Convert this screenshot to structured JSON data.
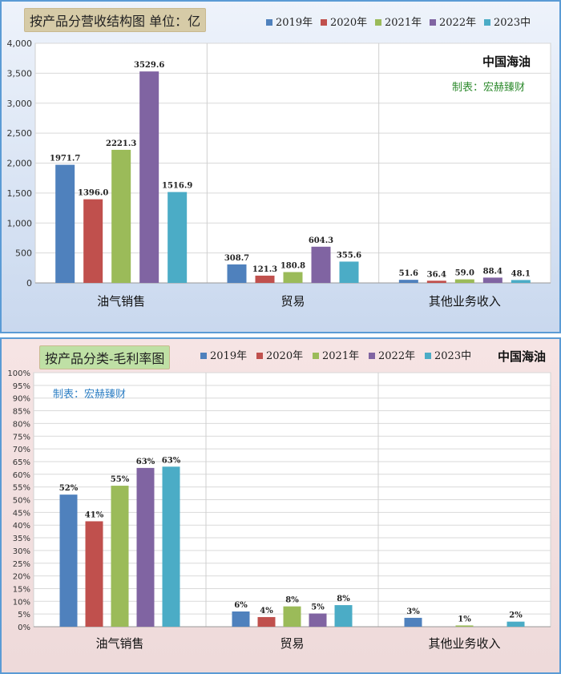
{
  "top": {
    "title": "按产品分营收结构图 单位：亿",
    "brand": "中国海油",
    "credit": "制表：宏赫臻财",
    "credit_color": "#2e8b2e"
  },
  "bottom": {
    "title": "按产品分类-毛利率图",
    "brand": "中国海油",
    "credit": "制表：宏赫臻财",
    "credit_color": "#2e7fc4"
  },
  "chart_data": [
    {
      "type": "bar",
      "title": "按产品分营收结构图 单位：亿",
      "categories": [
        "油气销售",
        "贸易",
        "其他业务收入"
      ],
      "ylim": [
        0,
        4000
      ],
      "yticks": [
        "0",
        "500",
        "1,000",
        "1,500",
        "2,000",
        "2,500",
        "3,000",
        "3,500",
        "4,000"
      ],
      "ytick_values": [
        0,
        500,
        1000,
        1500,
        2000,
        2500,
        3000,
        3500,
        4000
      ],
      "legend_position": "top",
      "grid": true,
      "series": [
        {
          "name": "2019年",
          "color": "#4f81bd",
          "values": [
            1971.7,
            308.7,
            51.6
          ],
          "labels": [
            "1971.7",
            "308.7",
            "51.6"
          ]
        },
        {
          "name": "2020年",
          "color": "#c0504d",
          "values": [
            1396.0,
            121.3,
            36.4
          ],
          "labels": [
            "1396.0",
            "121.3",
            "36.4"
          ]
        },
        {
          "name": "2021年",
          "color": "#9bbb59",
          "values": [
            2221.3,
            180.8,
            59.0
          ],
          "labels": [
            "2221.3",
            "180.8",
            "59.0"
          ]
        },
        {
          "name": "2022年",
          "color": "#8064a2",
          "values": [
            3529.6,
            604.3,
            88.4
          ],
          "labels": [
            "3529.6",
            "604.3",
            "88.4"
          ]
        },
        {
          "name": "2023中",
          "color": "#4bacc6",
          "values": [
            1516.9,
            355.6,
            48.1
          ],
          "labels": [
            "1516.9",
            "355.6",
            "48.1"
          ]
        }
      ]
    },
    {
      "type": "bar",
      "title": "按产品分类-毛利率图",
      "categories": [
        "油气销售",
        "贸易",
        "其他业务收入"
      ],
      "ylim": [
        0,
        100
      ],
      "yticks": [
        "0%",
        "5%",
        "10%",
        "15%",
        "20%",
        "25%",
        "30%",
        "35%",
        "40%",
        "45%",
        "50%",
        "55%",
        "60%",
        "65%",
        "70%",
        "75%",
        "80%",
        "85%",
        "90%",
        "95%",
        "100%"
      ],
      "ytick_values": [
        0,
        5,
        10,
        15,
        20,
        25,
        30,
        35,
        40,
        45,
        50,
        55,
        60,
        65,
        70,
        75,
        80,
        85,
        90,
        95,
        100
      ],
      "legend_position": "top",
      "grid": true,
      "series": [
        {
          "name": "2019年",
          "color": "#4f81bd",
          "values": [
            52,
            6,
            3.5
          ],
          "labels": [
            "52%",
            "6%",
            "3%"
          ]
        },
        {
          "name": "2020年",
          "color": "#c0504d",
          "values": [
            41.5,
            3.8,
            0
          ],
          "labels": [
            "41%",
            "4%",
            ""
          ]
        },
        {
          "name": "2021年",
          "color": "#9bbb59",
          "values": [
            55.5,
            8,
            0.5
          ],
          "labels": [
            "55%",
            "8%",
            "1%"
          ]
        },
        {
          "name": "2022年",
          "color": "#8064a2",
          "values": [
            62.5,
            5.2,
            0
          ],
          "labels": [
            "63%",
            "5%",
            ""
          ]
        },
        {
          "name": "2023中",
          "color": "#4bacc6",
          "values": [
            63,
            8.5,
            2
          ],
          "labels": [
            "63%",
            "8%",
            "2%"
          ]
        }
      ]
    }
  ]
}
